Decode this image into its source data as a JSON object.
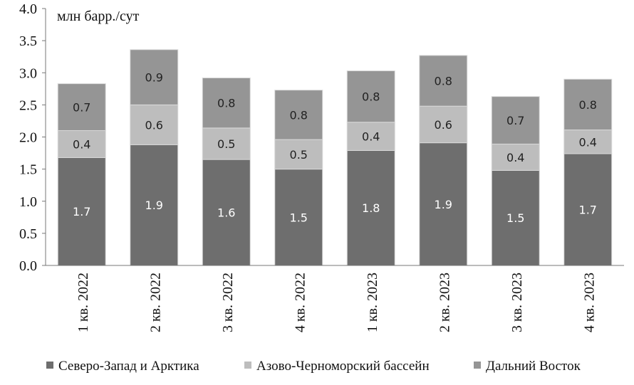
{
  "chart_data": {
    "type": "bar",
    "stacked": true,
    "ylabel": "млн барр./сут",
    "ylim": [
      0,
      4.0
    ],
    "y_ticks": [
      "0.0",
      "0.5",
      "1.0",
      "1.5",
      "2.0",
      "2.5",
      "3.0",
      "3.5",
      "4.0"
    ],
    "categories": [
      "1 кв. 2022",
      "2 кв. 2022",
      "3 кв. 2022",
      "4 кв. 2022",
      "1 кв. 2023",
      "2 кв. 2023",
      "3 кв. 2023",
      "4 кв. 2023"
    ],
    "series": [
      {
        "name": "Северо-Запад и Арктика",
        "color": "#6e6e6e",
        "values": [
          1.68,
          1.88,
          1.65,
          1.5,
          1.79,
          1.91,
          1.48,
          1.74
        ],
        "labels": [
          "1.7",
          "1.9",
          "1.6",
          "1.5",
          "1.8",
          "1.9",
          "1.5",
          "1.7"
        ]
      },
      {
        "name": "Азово-Черноморский бассейн",
        "color": "#bdbdbd",
        "values": [
          0.42,
          0.62,
          0.49,
          0.46,
          0.44,
          0.57,
          0.41,
          0.37
        ],
        "labels": [
          "0.4",
          "0.6",
          "0.5",
          "0.5",
          "0.4",
          "0.6",
          "0.4",
          "0.4"
        ]
      },
      {
        "name": "Дальний Восток",
        "color": "#959595",
        "values": [
          0.73,
          0.86,
          0.78,
          0.77,
          0.8,
          0.79,
          0.74,
          0.79
        ],
        "labels": [
          "0.7",
          "0.9",
          "0.8",
          "0.8",
          "0.8",
          "0.8",
          "0.7",
          "0.8"
        ]
      }
    ],
    "grid": false,
    "legend_position": "bottom"
  }
}
